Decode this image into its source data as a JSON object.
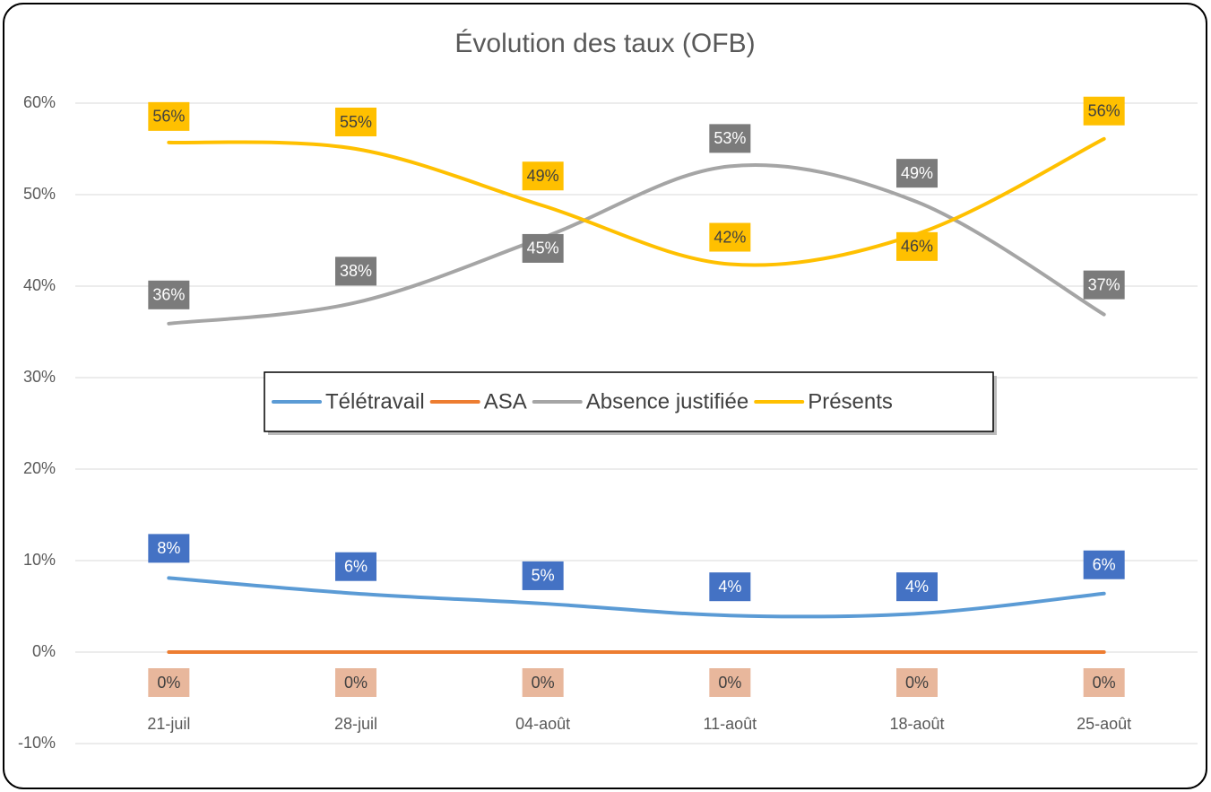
{
  "chart_data": {
    "type": "line",
    "title": "Évolution des taux (OFB)",
    "categories": [
      "21-juil",
      "28-juil",
      "04-août",
      "11-août",
      "18-août",
      "25-août"
    ],
    "series": [
      {
        "name": "Télétravail",
        "color": "#5b9bd5",
        "label_color": "#4472c4",
        "values": [
          8.1,
          6.4,
          5.3,
          4.0,
          4.2,
          6.4
        ],
        "value_labels": [
          "8%",
          "6%",
          "5%",
          "4%",
          "4%",
          "6%"
        ]
      },
      {
        "name": "ASA",
        "color": "#ed7d31",
        "label_color": "#e8b79c",
        "values": [
          0,
          0,
          0,
          0,
          0,
          0
        ],
        "value_labels": [
          "0%",
          "0%",
          "0%",
          "0%",
          "0%",
          "0%"
        ]
      },
      {
        "name": "Absence justifiée",
        "color": "#a5a5a5",
        "label_color": "#7b7b7b",
        "values": [
          35.9,
          38.2,
          45.3,
          53.1,
          49.2,
          36.9
        ],
        "value_labels": [
          "36%",
          "38%",
          "45%",
          "53%",
          "49%",
          "37%"
        ]
      },
      {
        "name": "Présents",
        "color": "#ffc000",
        "label_color": "#ffc000",
        "values": [
          55.7,
          55.0,
          48.8,
          42.4,
          45.7,
          56.1
        ],
        "value_labels": [
          "56%",
          "55%",
          "49%",
          "42%",
          "46%",
          "56%"
        ]
      }
    ],
    "ylim": [
      -10,
      60
    ],
    "yticks": [
      {
        "value": -10,
        "label": "-10%"
      },
      {
        "value": 0,
        "label": "0%"
      },
      {
        "value": 10,
        "label": "10%"
      },
      {
        "value": 20,
        "label": "20%"
      },
      {
        "value": 30,
        "label": "30%"
      },
      {
        "value": 40,
        "label": "40%"
      },
      {
        "value": 50,
        "label": "50%"
      },
      {
        "value": 60,
        "label": "60%"
      }
    ],
    "grid": true,
    "smooth": true,
    "legend": "center"
  }
}
